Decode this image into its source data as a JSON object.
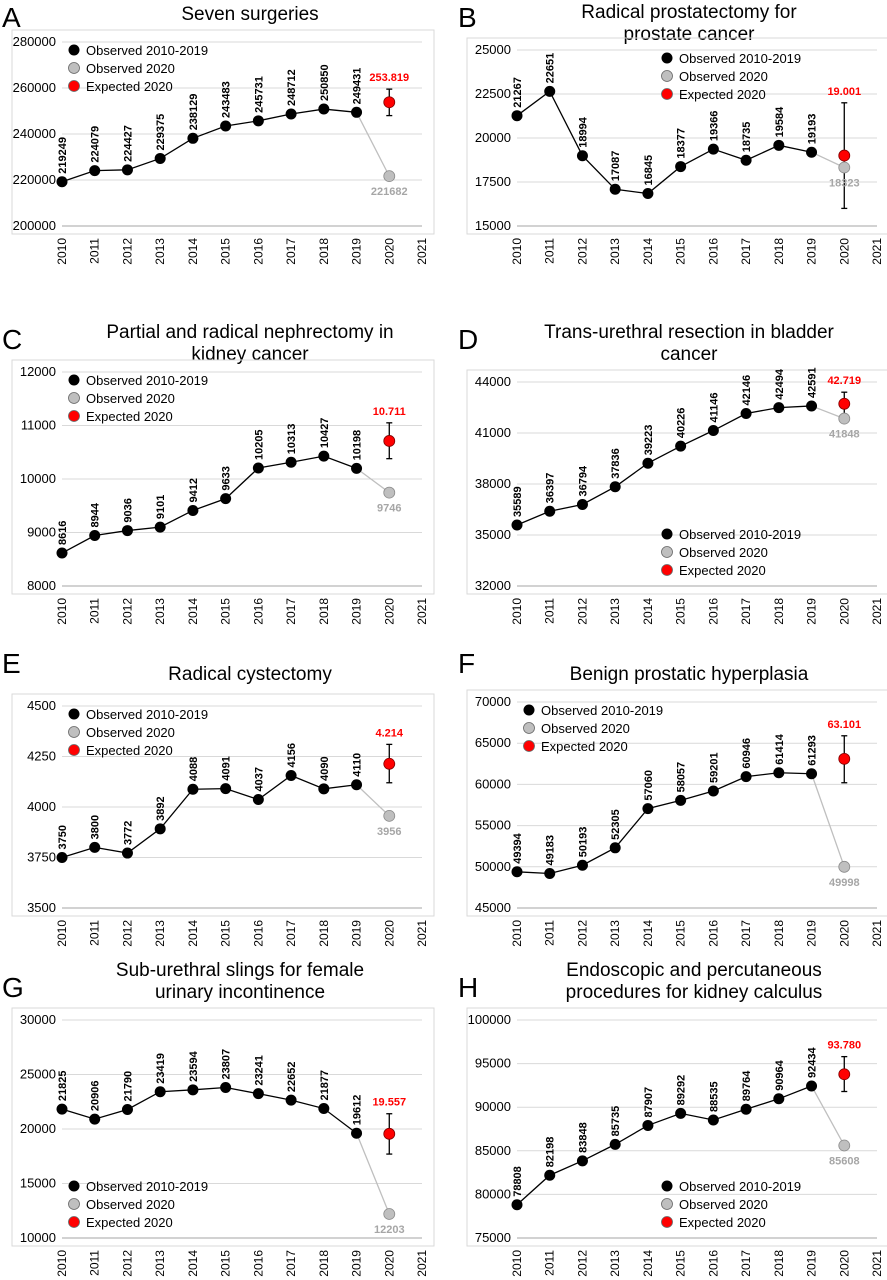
{
  "legend_labels": {
    "observed": "Observed 2010-2019",
    "observed2020": "Observed 2020",
    "expected": "Expected 2020"
  },
  "colors": {
    "observed": "#000000",
    "observed2020": "#bfbfbf",
    "observed2020_label": "#a6a6a6",
    "expected": "#ff0000",
    "grid": "#d9d9d9",
    "frame": "#d9d9d9"
  },
  "panels": [
    {
      "letter": "A",
      "title": "Seven surgeries"
    },
    {
      "letter": "B",
      "title": "Radical prostatectomy for prostate cancer"
    },
    {
      "letter": "C",
      "title": "Partial and radical nephrectomy in kidney cancer"
    },
    {
      "letter": "D",
      "title": "Trans-urethral resection in bladder cancer"
    },
    {
      "letter": "E",
      "title": "Radical cystectomy"
    },
    {
      "letter": "F",
      "title": "Benign prostatic hyperplasia"
    },
    {
      "letter": "G",
      "title": "Sub-urethral slings for female urinary incontinence"
    },
    {
      "letter": "H",
      "title": "Endoscopic and percutaneous procedures for kidney calculus"
    }
  ],
  "chart_data": [
    {
      "type": "line",
      "panel": "A",
      "title": "Seven surgeries",
      "x": [
        2010,
        2011,
        2012,
        2013,
        2014,
        2015,
        2016,
        2017,
        2018,
        2019
      ],
      "x_ticks": [
        "2010",
        "2011",
        "2012",
        "2013",
        "2014",
        "2015",
        "2016",
        "2017",
        "2018",
        "2019",
        "2020",
        "2021"
      ],
      "y_ticks": [
        "200000",
        "220000",
        "240000",
        "260000",
        "280000"
      ],
      "ylim": [
        200000,
        280000
      ],
      "series": [
        {
          "name": "Observed 2010-2019",
          "values": [
            219249,
            224079,
            224427,
            229375,
            238129,
            243483,
            245731,
            248712,
            250850,
            249431
          ]
        },
        {
          "name": "Observed 2020",
          "x": 2020,
          "value": 221682,
          "label": "221682"
        },
        {
          "name": "Expected 2020",
          "x": 2020,
          "value": 253819,
          "label": "253.819",
          "ci": [
            248000,
            259500
          ]
        }
      ],
      "legend": "top-left",
      "grid": "horizontal"
    },
    {
      "type": "line",
      "panel": "B",
      "title": "Radical prostatectomy for prostate cancer",
      "x": [
        2010,
        2011,
        2012,
        2013,
        2014,
        2015,
        2016,
        2017,
        2018,
        2019
      ],
      "x_ticks": [
        "2010",
        "2011",
        "2012",
        "2013",
        "2014",
        "2015",
        "2016",
        "2017",
        "2018",
        "2019",
        "2020",
        "2021"
      ],
      "y_ticks": [
        "15000",
        "17500",
        "20000",
        "22500",
        "25000"
      ],
      "ylim": [
        15000,
        25000
      ],
      "series": [
        {
          "name": "Observed 2010-2019",
          "values": [
            21267,
            22651,
            18994,
            17087,
            16845,
            18377,
            19366,
            18735,
            19584,
            19193
          ]
        },
        {
          "name": "Observed 2020",
          "x": 2020,
          "value": 18323,
          "label": "18323"
        },
        {
          "name": "Expected 2020",
          "x": 2020,
          "value": 19001,
          "label": "19.001",
          "ci": [
            16000,
            22000
          ]
        }
      ],
      "legend": "top-right",
      "grid": "horizontal"
    },
    {
      "type": "line",
      "panel": "C",
      "title": "Partial and radical nephrectomy in kidney cancer",
      "x": [
        2010,
        2011,
        2012,
        2013,
        2014,
        2015,
        2016,
        2017,
        2018,
        2019
      ],
      "x_ticks": [
        "2010",
        "2011",
        "2012",
        "2013",
        "2014",
        "2015",
        "2016",
        "2017",
        "2018",
        "2019",
        "2020",
        "2021"
      ],
      "y_ticks": [
        "8000",
        "9000",
        "10000",
        "11000",
        "12000"
      ],
      "ylim": [
        8000,
        12000
      ],
      "series": [
        {
          "name": "Observed 2010-2019",
          "values": [
            8616,
            8944,
            9036,
            9101,
            9412,
            9633,
            10205,
            10313,
            10427,
            10198
          ]
        },
        {
          "name": "Observed 2020",
          "x": 2020,
          "value": 9746,
          "label": "9746"
        },
        {
          "name": "Expected 2020",
          "x": 2020,
          "value": 10711,
          "label": "10.711",
          "ci": [
            10380,
            11050
          ]
        }
      ],
      "legend": "top-left",
      "grid": "horizontal"
    },
    {
      "type": "line",
      "panel": "D",
      "title": "Trans-urethral resection in bladder cancer",
      "x": [
        2010,
        2011,
        2012,
        2013,
        2014,
        2015,
        2016,
        2017,
        2018,
        2019
      ],
      "x_ticks": [
        "2010",
        "2011",
        "2012",
        "2013",
        "2014",
        "2015",
        "2016",
        "2017",
        "2018",
        "2019",
        "2020",
        "2021"
      ],
      "y_ticks": [
        "32000",
        "35000",
        "38000",
        "41000",
        "44000"
      ],
      "ylim": [
        32000,
        44000
      ],
      "series": [
        {
          "name": "Observed 2010-2019",
          "values": [
            35589,
            36397,
            36794,
            37836,
            39223,
            40226,
            41146,
            42146,
            42494,
            42591
          ]
        },
        {
          "name": "Observed 2020",
          "x": 2020,
          "value": 41848,
          "label": "41848"
        },
        {
          "name": "Expected 2020",
          "x": 2020,
          "value": 42719,
          "label": "42.719",
          "ci": [
            42000,
            43400
          ]
        }
      ],
      "legend": "bottom-right",
      "grid": "horizontal"
    },
    {
      "type": "line",
      "panel": "E",
      "title": "Radical cystectomy",
      "x": [
        2010,
        2011,
        2012,
        2013,
        2014,
        2015,
        2016,
        2017,
        2018,
        2019
      ],
      "x_ticks": [
        "2010",
        "2011",
        "2012",
        "2013",
        "2014",
        "2015",
        "2016",
        "2017",
        "2018",
        "2019",
        "2020",
        "2021"
      ],
      "y_ticks": [
        "3500",
        "3750",
        "4000",
        "4250",
        "4500"
      ],
      "ylim": [
        3500,
        4500
      ],
      "series": [
        {
          "name": "Observed 2010-2019",
          "values": [
            3750,
            3800,
            3772,
            3892,
            4088,
            4091,
            4037,
            4156,
            4090,
            4110
          ]
        },
        {
          "name": "Observed 2020",
          "x": 2020,
          "value": 3956,
          "label": "3956"
        },
        {
          "name": "Expected 2020",
          "x": 2020,
          "value": 4214,
          "label": "4.214",
          "ci": [
            4120,
            4310
          ]
        }
      ],
      "legend": "top-left",
      "grid": "horizontal"
    },
    {
      "type": "line",
      "panel": "F",
      "title": "Benign prostatic hyperplasia",
      "x": [
        2010,
        2011,
        2012,
        2013,
        2014,
        2015,
        2016,
        2017,
        2018,
        2019
      ],
      "x_ticks": [
        "2010",
        "2011",
        "2012",
        "2013",
        "2014",
        "2015",
        "2016",
        "2017",
        "2018",
        "2019",
        "2020",
        "2021"
      ],
      "y_ticks": [
        "45000",
        "50000",
        "55000",
        "60000",
        "65000",
        "70000"
      ],
      "ylim": [
        45000,
        70000
      ],
      "series": [
        {
          "name": "Observed 2010-2019",
          "values": [
            49394,
            49183,
            50193,
            52305,
            57060,
            58057,
            59201,
            60946,
            61414,
            61293
          ]
        },
        {
          "name": "Observed 2020",
          "x": 2020,
          "value": 49998,
          "label": "49998"
        },
        {
          "name": "Expected 2020",
          "x": 2020,
          "value": 63101,
          "label": "63.101",
          "ci": [
            60200,
            65900
          ]
        }
      ],
      "legend": "top-left",
      "grid": "horizontal"
    },
    {
      "type": "line",
      "panel": "G",
      "title": "Sub-urethral slings for female urinary incontinence",
      "x": [
        2010,
        2011,
        2012,
        2013,
        2014,
        2015,
        2016,
        2017,
        2018,
        2019
      ],
      "x_ticks": [
        "2010",
        "2011",
        "2012",
        "2013",
        "2014",
        "2015",
        "2016",
        "2017",
        "2018",
        "2019",
        "2020",
        "2021"
      ],
      "y_ticks": [
        "10000",
        "15000",
        "20000",
        "25000",
        "30000"
      ],
      "ylim": [
        10000,
        30000
      ],
      "series": [
        {
          "name": "Observed 2010-2019",
          "values": [
            21825,
            20906,
            21790,
            23419,
            23594,
            23807,
            23241,
            22652,
            21877,
            19612
          ]
        },
        {
          "name": "Observed 2020",
          "x": 2020,
          "value": 12203,
          "label": "12203"
        },
        {
          "name": "Expected 2020",
          "x": 2020,
          "value": 19557,
          "label": "19.557",
          "ci": [
            17700,
            21400
          ]
        }
      ],
      "legend": "bottom-left",
      "grid": "horizontal"
    },
    {
      "type": "line",
      "panel": "H",
      "title": "Endoscopic and percutaneous procedures for kidney calculus",
      "x": [
        2010,
        2011,
        2012,
        2013,
        2014,
        2015,
        2016,
        2017,
        2018,
        2019
      ],
      "x_ticks": [
        "2010",
        "2011",
        "2012",
        "2013",
        "2014",
        "2015",
        "2016",
        "2017",
        "2018",
        "2019",
        "2020",
        "2021"
      ],
      "y_ticks": [
        "75000",
        "80000",
        "85000",
        "90000",
        "95000",
        "100000"
      ],
      "ylim": [
        75000,
        100000
      ],
      "series": [
        {
          "name": "Observed 2010-2019",
          "values": [
            78808,
            82198,
            83848,
            85735,
            87907,
            89292,
            88535,
            89764,
            90964,
            92434
          ]
        },
        {
          "name": "Observed 2020",
          "x": 2020,
          "value": 85608,
          "label": "85608"
        },
        {
          "name": "Expected 2020",
          "x": 2020,
          "value": 93780,
          "label": "93.780",
          "ci": [
            91800,
            95800
          ]
        }
      ],
      "legend": "bottom-right",
      "grid": "horizontal"
    }
  ]
}
